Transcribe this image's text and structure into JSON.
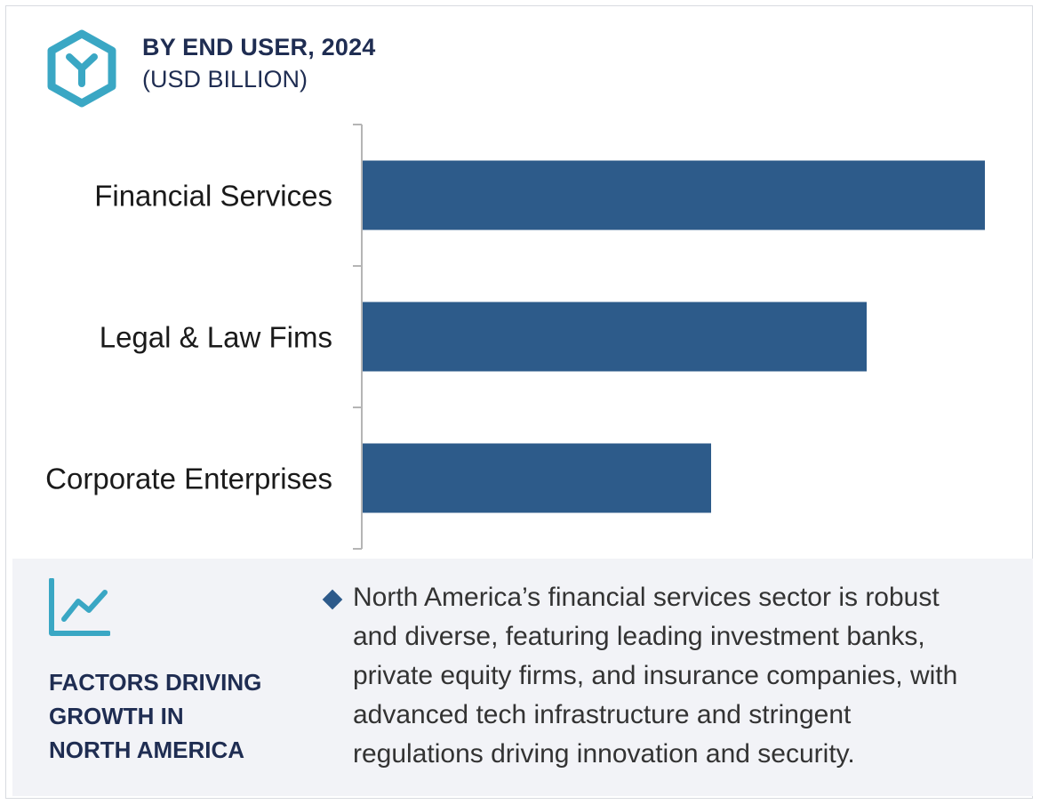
{
  "header": {
    "title": "BY END USER, 2024",
    "subtitle": "(USD BILLION)"
  },
  "colors": {
    "bar": "#2d5b8a",
    "accent": "#3aa7c4",
    "title": "#1f2d52"
  },
  "chart_data": {
    "type": "bar",
    "orientation": "horizontal",
    "title": "BY END USER, 2024",
    "subtitle": "(USD BILLION)",
    "categories": [
      "Financial Services",
      "Legal & Law Fims",
      "Corporate Enterprises"
    ],
    "values": [
      100,
      81,
      56
    ],
    "value_note": "relative bar lengths only; no axis values shown",
    "xlim": [
      0,
      100
    ],
    "grid": false,
    "legend": "none"
  },
  "panel": {
    "heading_lines": [
      "FACTORS DRIVING",
      "GROWTH IN",
      "NORTH AMERICA"
    ],
    "bullet_lines": [
      "North America’s financial services sector is robust",
      "and diverse, featuring leading investment banks,",
      "private equity firms, and insurance companies, with",
      "advanced tech infrastructure and stringent",
      "regulations driving innovation and security."
    ],
    "icons": {
      "logo": "hexagon-y-logo-icon",
      "trend": "trend-chart-icon",
      "bullet": "diamond-bullet-icon"
    }
  }
}
